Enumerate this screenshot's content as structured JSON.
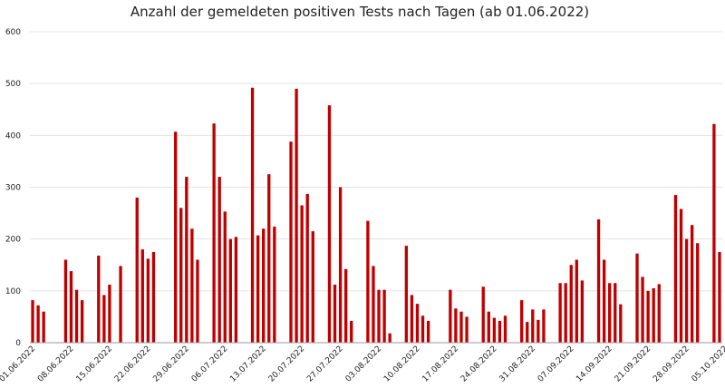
{
  "chart_data": {
    "type": "bar",
    "title": "Anzahl der gemeldeten positiven Tests nach Tagen (ab 01.06.2022)",
    "xlabel": "",
    "ylabel": "",
    "ylim": [
      0,
      600
    ],
    "yticks": [
      0,
      100,
      200,
      300,
      400,
      500,
      600
    ],
    "grid": true,
    "color": "#c00000",
    "start_date": "01.06.2022",
    "xtick_labels": [
      "01.06.2022",
      "08.06.2022",
      "15.06.2022",
      "22.06.2022",
      "29.06.2022",
      "06.07.2022",
      "13.07.2022",
      "20.07.2022",
      "27.07.2022",
      "03.08.2022",
      "10.08.2022",
      "17.08.2022",
      "24.08.2022",
      "31.08.2022",
      "07.09.2022",
      "14.09.2022",
      "21.09.2022",
      "28.09.2022",
      "05.10.2022"
    ],
    "values": [
      82,
      72,
      60,
      0,
      0,
      0,
      160,
      138,
      102,
      82,
      0,
      0,
      168,
      92,
      112,
      0,
      148,
      0,
      0,
      280,
      180,
      162,
      175,
      0,
      0,
      0,
      407,
      260,
      320,
      220,
      160,
      0,
      0,
      423,
      320,
      253,
      200,
      204,
      0,
      0,
      492,
      207,
      220,
      325,
      224,
      0,
      0,
      388,
      490,
      265,
      287,
      215,
      0,
      0,
      458,
      112,
      300,
      142,
      42,
      0,
      0,
      235,
      148,
      102,
      102,
      18,
      0,
      0,
      187,
      92,
      75,
      52,
      42,
      0,
      0,
      0,
      102,
      66,
      60,
      50,
      0,
      0,
      108,
      60,
      48,
      42,
      52,
      0,
      0,
      82,
      40,
      64,
      44,
      64,
      0,
      0,
      115,
      115,
      150,
      160,
      120,
      0,
      0,
      238,
      160,
      115,
      115,
      74,
      0,
      0,
      172,
      127,
      100,
      105,
      113,
      0,
      0,
      285,
      258,
      200,
      227,
      192,
      0,
      0,
      422,
      175
    ]
  }
}
